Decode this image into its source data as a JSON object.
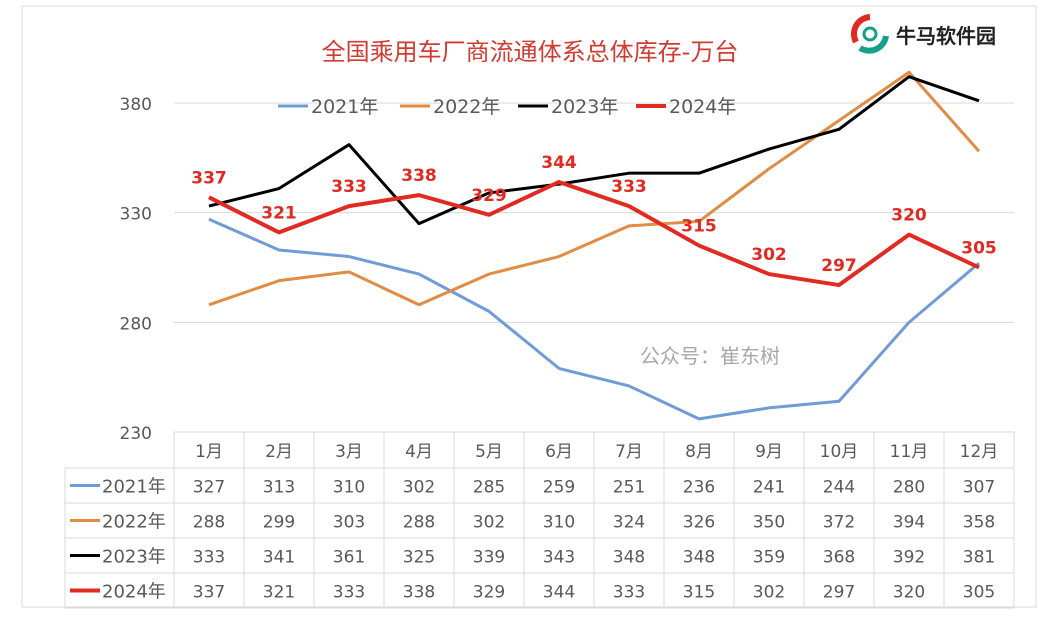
{
  "chart_data": {
    "type": "line",
    "title": "全国乘用车厂商流通体系总体库存-万台",
    "categories": [
      "1月",
      "2月",
      "3月",
      "4月",
      "5月",
      "6月",
      "7月",
      "8月",
      "9月",
      "10月",
      "11月",
      "12月"
    ],
    "yticks": [
      230,
      280,
      330,
      380
    ],
    "ylim": [
      230,
      380
    ],
    "grid": true,
    "legend_position": "top",
    "series": [
      {
        "name": "2021年",
        "color": "#6f9bd6",
        "values": [
          327,
          313,
          310,
          302,
          285,
          259,
          251,
          236,
          241,
          244,
          280,
          307
        ]
      },
      {
        "name": "2022年",
        "color": "#e08c43",
        "values": [
          288,
          299,
          303,
          288,
          302,
          310,
          324,
          326,
          350,
          372,
          394,
          358
        ]
      },
      {
        "name": "2023年",
        "color": "#000000",
        "values": [
          333,
          341,
          361,
          325,
          339,
          343,
          348,
          348,
          359,
          368,
          392,
          381
        ]
      },
      {
        "name": "2024年",
        "color": "#e02a22",
        "values": [
          337,
          321,
          333,
          338,
          329,
          344,
          333,
          315,
          302,
          297,
          320,
          305
        ],
        "labeled": true
      }
    ]
  },
  "watermark": {
    "text": "公众号：崔东树",
    "logo": "牛马软件园"
  }
}
